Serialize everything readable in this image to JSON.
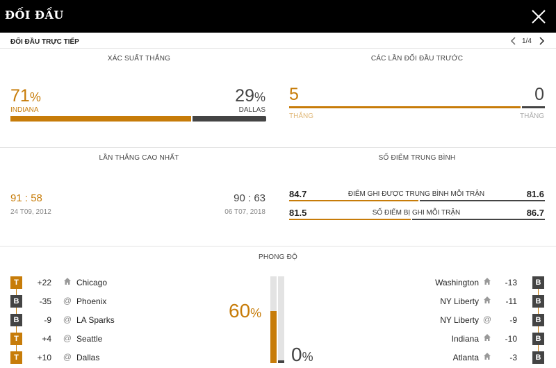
{
  "header": {
    "title": "ĐỐI ĐẦU"
  },
  "subheader": {
    "title": "ĐỐI ĐẦU TRỰC TIẾP",
    "pager": "1/4"
  },
  "win_prob": {
    "title": "XÁC SUẤT THẮNG",
    "home_value": "71",
    "home_team": "INDIANA",
    "away_value": "29",
    "away_team": "DALLAS",
    "pct_symbol": "%",
    "home_fraction": 0.71,
    "away_fraction": 0.29
  },
  "previous": {
    "title": "CÁC LẦN ĐỐI ĐẦU TRƯỚC",
    "home_wins": "5",
    "away_wins": "0",
    "home_label": "THẮNG",
    "away_label": "THẮNG"
  },
  "highest": {
    "title": "LẦN THẮNG CAO NHẤT",
    "home_score_a": "91",
    "home_score_b": "58",
    "home_date": "24 T09, 2012",
    "away_score_a": "90",
    "away_score_b": "63",
    "away_date": "06 T07, 2018",
    "sep": ":"
  },
  "averages": {
    "title": "SỐ ĐIỂM TRUNG BÌNH",
    "rows": [
      {
        "label": "ĐIỂM GHI ĐƯỢC TRUNG BÌNH MỖI TRẬN",
        "home": "84.7",
        "away": "81.6"
      },
      {
        "label": "SỐ ĐIỂM BỊ GHI MỖI TRẬN",
        "home": "81.5",
        "away": "86.7"
      }
    ]
  },
  "form": {
    "title": "PHONG ĐỘ",
    "home_pct": "60",
    "away_pct": "0",
    "pct_symbol": "%",
    "home_fraction": 0.6,
    "away_fraction": 0.0,
    "home_rows": [
      {
        "result": "T",
        "diff": "+22",
        "loc": "home",
        "opponent": "Chicago"
      },
      {
        "result": "B",
        "diff": "-35",
        "loc": "away",
        "opponent": "Phoenix"
      },
      {
        "result": "B",
        "diff": "-9",
        "loc": "away",
        "opponent": "LA Sparks"
      },
      {
        "result": "T",
        "diff": "+4",
        "loc": "away",
        "opponent": "Seattle"
      },
      {
        "result": "T",
        "diff": "+10",
        "loc": "away",
        "opponent": "Dallas"
      }
    ],
    "away_rows": [
      {
        "result": "B",
        "diff": "-13",
        "loc": "home",
        "opponent": "Washington"
      },
      {
        "result": "B",
        "diff": "-11",
        "loc": "home",
        "opponent": "NY Liberty"
      },
      {
        "result": "B",
        "diff": "-9",
        "loc": "away",
        "opponent": "NY Liberty"
      },
      {
        "result": "B",
        "diff": "-10",
        "loc": "home",
        "opponent": "Indiana"
      },
      {
        "result": "B",
        "diff": "-3",
        "loc": "home",
        "opponent": "Atlanta"
      }
    ]
  },
  "colors": {
    "accent": "#c77c09",
    "dark": "#444444",
    "track": "#e3e3e3"
  },
  "icons": {
    "close": "close-icon",
    "prev": "chevron-left-icon",
    "next": "chevron-right-icon",
    "home": "home-icon",
    "away": "at-icon"
  }
}
